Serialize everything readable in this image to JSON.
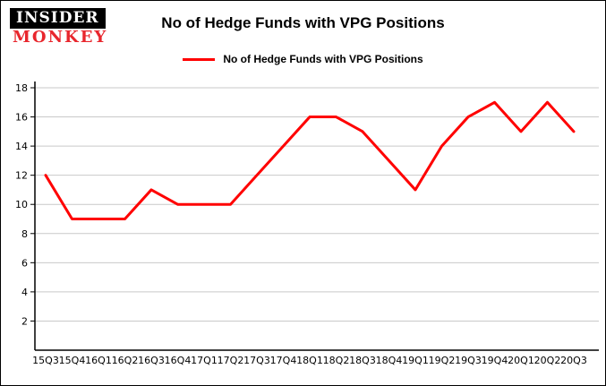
{
  "logo": {
    "line1": "INSIDER",
    "line2": "MONKEY",
    "brand_color": "#e8262d"
  },
  "header": {
    "title": "No of Hedge Funds with VPG Positions"
  },
  "legend": {
    "label": "No of Hedge Funds with VPG Positions",
    "color": "#ff0000"
  },
  "colors": {
    "gridline": "#c9c9c9",
    "axis": "#000000",
    "background": "#ffffff",
    "line": "#ff0000"
  },
  "chart_data": {
    "type": "line",
    "title": "No of Hedge Funds with VPG Positions",
    "xlabel": "",
    "ylabel": "",
    "categories": [
      "15Q3",
      "15Q4",
      "16Q1",
      "16Q2",
      "16Q3",
      "16Q4",
      "17Q1",
      "17Q2",
      "17Q3",
      "17Q4",
      "18Q1",
      "18Q2",
      "18Q3",
      "18Q4",
      "19Q1",
      "19Q2",
      "19Q3",
      "19Q4",
      "20Q1",
      "20Q2",
      "20Q3"
    ],
    "series": [
      {
        "name": "No of Hedge Funds with VPG Positions",
        "color": "#ff0000",
        "values": [
          12,
          9,
          9,
          9,
          11,
          10,
          10,
          10,
          12,
          14,
          16,
          16,
          15,
          13,
          11,
          14,
          16,
          17,
          15,
          17,
          15
        ]
      }
    ],
    "ylim": [
      0,
      18
    ],
    "yticks": [
      2,
      4,
      6,
      8,
      10,
      12,
      14,
      16,
      18
    ],
    "grid": true,
    "legend_position": "top"
  }
}
